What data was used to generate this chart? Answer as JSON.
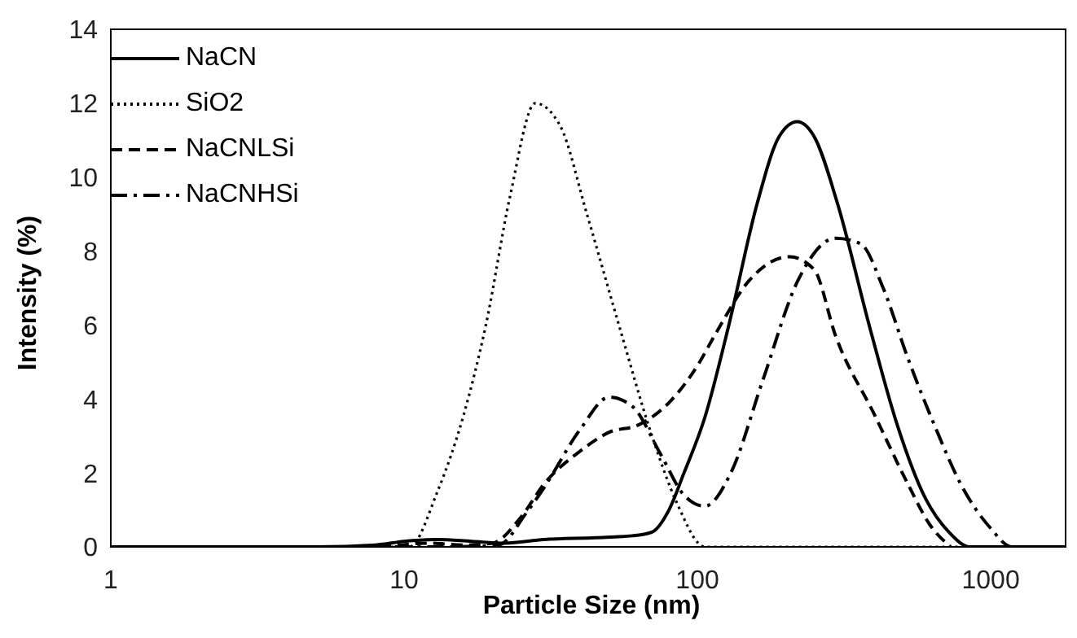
{
  "chart_data": {
    "type": "line",
    "xlabel": "Particle Size (nm)",
    "ylabel": "Intensity (%)",
    "log": "x",
    "xlim": [
      1,
      1800
    ],
    "xticks": [
      1,
      10,
      100,
      1000
    ],
    "ylim": [
      0,
      14
    ],
    "yticks": [
      0,
      2,
      4,
      6,
      8,
      10,
      12,
      14
    ],
    "grid": false,
    "legend": "top left",
    "marker": "none",
    "series": [
      {
        "name": "NaCN",
        "color": "#000000",
        "line_style": "solid",
        "x": [
          1,
          5,
          8,
          10,
          13,
          17,
          22,
          30,
          45,
          60,
          70,
          80,
          90,
          106,
          128,
          160,
          190,
          219,
          250,
          300,
          385,
          480,
          600,
          720,
          850,
          1200,
          1800
        ],
        "values": [
          0,
          0,
          0.05,
          0.15,
          0.2,
          0.15,
          0.1,
          0.2,
          0.25,
          0.3,
          0.4,
          1.0,
          2.0,
          3.5,
          6,
          9.3,
          11.1,
          11.5,
          11.1,
          9.3,
          6,
          3.3,
          1.3,
          0.4,
          0,
          0,
          0
        ]
      },
      {
        "name": "SiO2",
        "color": "#000000",
        "line_style": "dotted",
        "x": [
          1,
          8,
          10.4,
          13,
          16,
          19,
          23,
          28,
          34,
          42,
          54,
          70,
          85,
          106,
          1800
        ],
        "values": [
          0,
          0,
          0,
          1.5,
          3.6,
          6,
          9.5,
          12,
          11.4,
          9,
          6,
          3,
          1.2,
          0,
          0
        ]
      },
      {
        "name": "NaCNLSi",
        "color": "#000000",
        "line_style": "dashed",
        "x": [
          1,
          8,
          12,
          16,
          20,
          25,
          30,
          40,
          50,
          63,
          80,
          100,
          116,
          150,
          206,
          250,
          296,
          400,
          522,
          620,
          730
        ],
        "values": [
          0,
          0,
          0.1,
          0.05,
          0.1,
          0.8,
          1.7,
          2.6,
          3.1,
          3.3,
          3.9,
          4.9,
          5.8,
          7.2,
          7.85,
          7.5,
          5.7,
          3.6,
          1.7,
          0.6,
          0
        ]
      },
      {
        "name": "NaCNHSi",
        "color": "#000000",
        "line_style": "dashdot",
        "x": [
          1.2,
          9,
          14,
          21,
          26,
          30,
          40,
          50,
          60,
          75,
          90,
          106,
          130,
          167,
          220,
          296,
          360,
          430,
          522,
          650,
          790,
          1000,
          1180,
          1800
        ],
        "values": [
          0,
          0,
          0,
          0.05,
          0.9,
          1.6,
          3.2,
          4.05,
          3.8,
          2.5,
          1.4,
          1.1,
          2.0,
          4.5,
          7.2,
          8.35,
          8.2,
          7.0,
          5.1,
          3.2,
          1.7,
          0.5,
          0,
          0
        ]
      }
    ]
  }
}
